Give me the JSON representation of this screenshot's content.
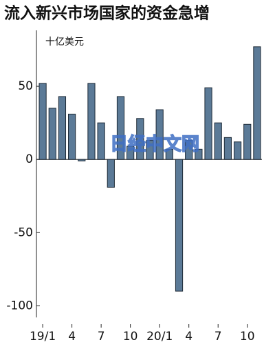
{
  "chart_data": {
    "type": "bar",
    "title": "流入新兴市场国家的资金急增",
    "unit_label": "十亿美元",
    "watermark": "日经中文网",
    "categories": [
      "19/1",
      null,
      null,
      "4",
      null,
      null,
      "7",
      null,
      null,
      "10",
      null,
      null,
      "20/1",
      null,
      null,
      "4",
      null,
      null,
      "7",
      null,
      null,
      "10",
      null
    ],
    "values": [
      52,
      35,
      43,
      31,
      -1,
      52,
      25,
      -19,
      43,
      9,
      28,
      13,
      34,
      7,
      -90,
      13,
      7,
      49,
      25,
      15,
      12,
      24,
      77
    ],
    "color": "#5b7a97",
    "ylim": [
      -108,
      92
    ],
    "yticks": [
      -100,
      -50,
      0,
      50
    ],
    "grid": false
  }
}
